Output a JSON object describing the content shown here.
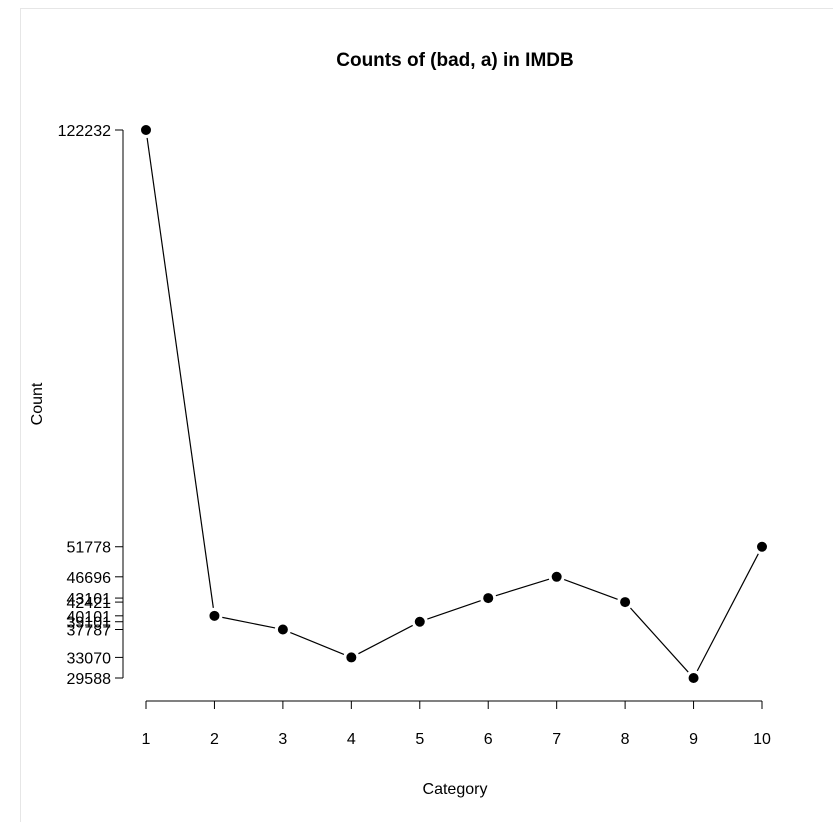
{
  "chart_data": {
    "type": "line",
    "title": "Counts of (bad, a) in IMDB",
    "xlabel": "Category",
    "ylabel": "Count",
    "x": [
      1,
      2,
      3,
      4,
      5,
      6,
      7,
      8,
      9,
      10
    ],
    "y": [
      122232,
      40101,
      37787,
      33070,
      39101,
      43101,
      46696,
      42421,
      29588,
      51778
    ],
    "xticks": [
      "1",
      "2",
      "3",
      "4",
      "5",
      "6",
      "7",
      "8",
      "9",
      "10"
    ],
    "yticks": [
      122232,
      51778,
      46696,
      43101,
      42421,
      40101,
      39101,
      37787,
      33070,
      29588
    ],
    "ylim": [
      29588,
      122232
    ],
    "xlim": [
      1,
      10
    ],
    "grid": false,
    "colors": {
      "line": "#000000",
      "point": "#000000"
    }
  }
}
